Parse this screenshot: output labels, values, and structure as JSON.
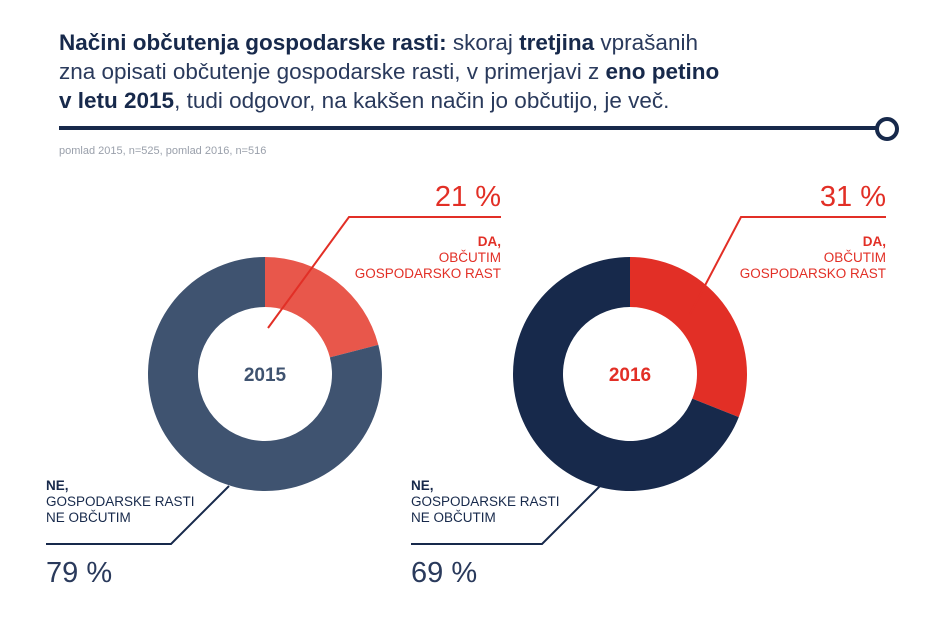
{
  "header": {
    "title_parts": [
      {
        "text": "Načini občutenja gospodarske rasti:",
        "bold": true
      },
      {
        "text": " skoraj ",
        "bold": false
      },
      {
        "text": "tretjina",
        "bold": true
      },
      {
        "text": " vprašanih",
        "bold": false
      },
      {
        "br": true
      },
      {
        "text": "zna opisati občutenje gospodarske rasti, v primerjavi z ",
        "bold": false
      },
      {
        "text": "eno petino",
        "bold": true
      },
      {
        "br": true
      },
      {
        "text": "v letu 2015",
        "bold": true
      },
      {
        "text": ", tudi odgovor, na kakšen način jo občutijo, je več.",
        "bold": false
      }
    ],
    "subtitle": "pomlad 2015, n=525, pomlad 2016, n=516"
  },
  "colors": {
    "navy": "#17294b",
    "slate": "#3f5370",
    "red_2016": "#e22f26",
    "red_2015": "#e8574b",
    "connector_red": "#e22f26"
  },
  "chart_data": [
    {
      "type": "pie",
      "donut": true,
      "center_label": "2015",
      "slices": [
        {
          "label": "DA, OBČUTIM GOSPODARSKO RAST",
          "value": 21,
          "value_label": "21 %",
          "label_lines": [
            "DA,",
            "OBČUTIM",
            "GOSPODARSKO RAST"
          ],
          "color": "#e8574b"
        },
        {
          "label": "NE, GOSPODARSKE RASTI NE OBČUTIM",
          "value": 79,
          "value_label": "79 %",
          "label_lines": [
            "NE,",
            "GOSPODARSKE RASTI",
            "NE OBČUTIM"
          ],
          "color": "#3f5370"
        }
      ]
    },
    {
      "type": "pie",
      "donut": true,
      "center_label": "2016",
      "slices": [
        {
          "label": "DA, OBČUTIM GOSPODARSKO RAST",
          "value": 31,
          "value_label": "31 %",
          "label_lines": [
            "DA,",
            "OBČUTIM",
            "GOSPODARSKO RAST"
          ],
          "color": "#e22f26"
        },
        {
          "label": "NE, GOSPODARSKE RASTI NE OBČUTIM",
          "value": 69,
          "value_label": "69 %",
          "label_lines": [
            "NE,",
            "GOSPODARSKE RASTI",
            "NE OBČUTIM"
          ],
          "color": "#17294b"
        }
      ]
    }
  ]
}
